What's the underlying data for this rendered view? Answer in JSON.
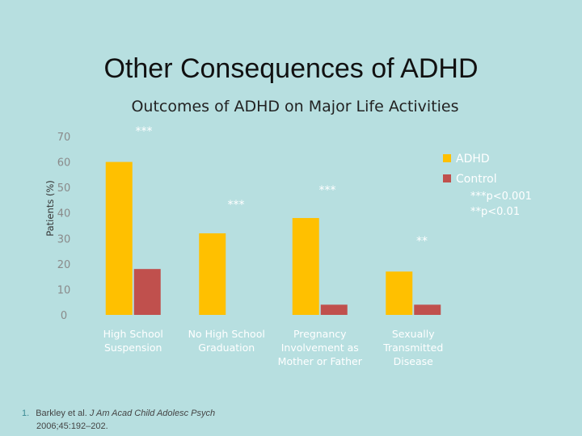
{
  "slide": {
    "title": "Other Consequences of ADHD"
  },
  "chart_data": {
    "type": "bar",
    "title": "Outcomes of ADHD on Major Life Activities",
    "ylabel": "Patients (%)",
    "xlabel": "",
    "ylim": [
      0,
      70
    ],
    "yticks": [
      0,
      10,
      20,
      30,
      40,
      50,
      60,
      70
    ],
    "categories": [
      [
        "High School",
        "Suspension"
      ],
      [
        "No High School",
        "Graduation"
      ],
      [
        "Pregnancy",
        "Involvement as",
        "Mother or Father"
      ],
      [
        "Sexually",
        "Transmitted",
        "Disease"
      ]
    ],
    "series": [
      {
        "name": "ADHD",
        "color": "#ffc000",
        "values": [
          60,
          32,
          38,
          17
        ]
      },
      {
        "name": "Control",
        "color": "#c0504d",
        "values": [
          18,
          0,
          4,
          4
        ]
      }
    ],
    "significance": [
      "***",
      "***",
      "***",
      "**"
    ],
    "notes": [
      "***p<0.001",
      "**p<0.01"
    ],
    "grid": false,
    "legend": "right"
  },
  "footnote": {
    "number": "1.",
    "line1_prefix": "Barkley et al. ",
    "journal": "J Am Acad Child Adolesc Psych",
    "line2": "2006;45:192–202."
  }
}
